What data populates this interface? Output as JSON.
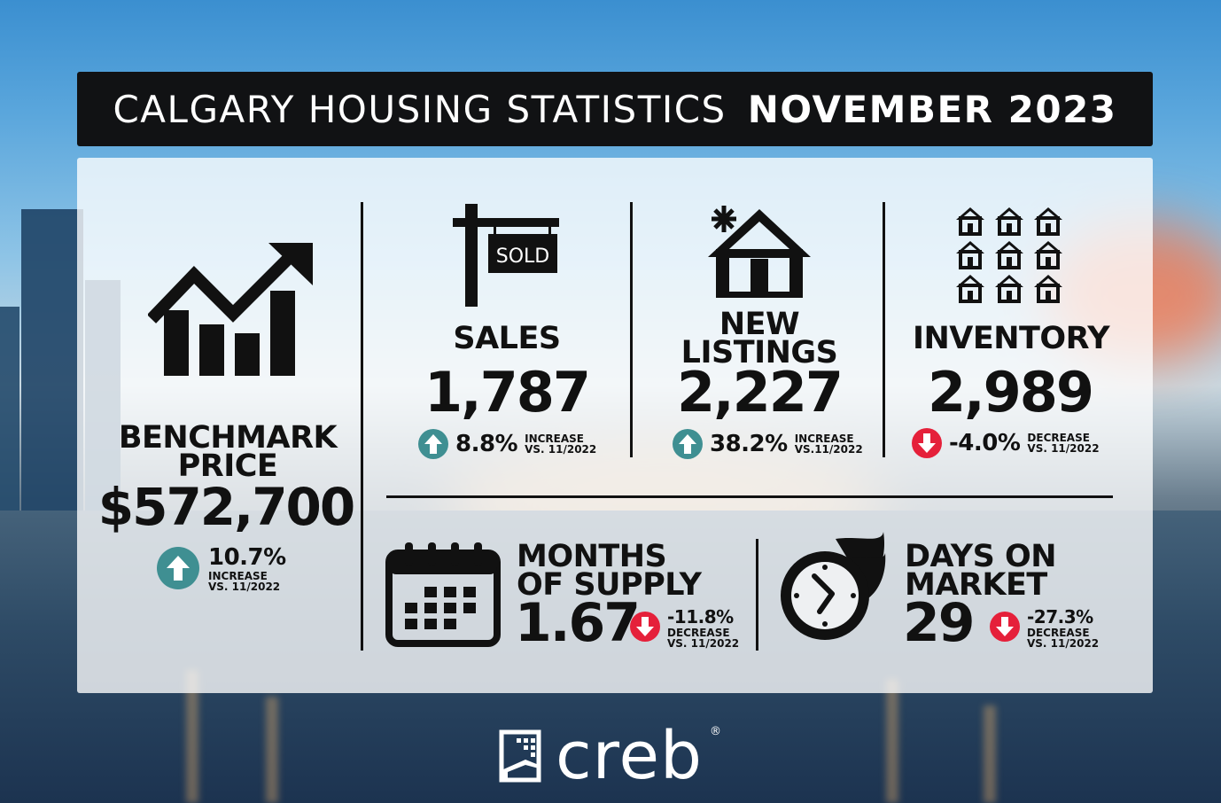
{
  "title": {
    "left": "CALGARY HOUSING STATISTICS",
    "right": "NOVEMBER 2023"
  },
  "colors": {
    "up": "#3f8f92",
    "down": "#e5203a",
    "banner": "#111214"
  },
  "benchmark": {
    "label1": "BENCHMARK",
    "label2": "PRICE",
    "value": "$572,700",
    "change": "10.7%",
    "direction": "up",
    "note1": "INCREASE",
    "note2": "VS. 11/2022",
    "icon": "trending-up-chart-icon"
  },
  "sales": {
    "sign": "SOLD",
    "label": "SALES",
    "value": "1,787",
    "change": "8.8%",
    "direction": "up",
    "note1": "INCREASE",
    "note2": "VS. 11/2022",
    "icon": "sold-sign-icon"
  },
  "new_listings": {
    "label1": "NEW",
    "label2": "LISTINGS",
    "value": "2,227",
    "change": "38.2%",
    "direction": "up",
    "note1": "INCREASE",
    "note2": "VS.11/2022",
    "icon": "new-house-icon"
  },
  "inventory": {
    "label": "INVENTORY",
    "value": "2,989",
    "change": "-4.0%",
    "direction": "down",
    "note1": "DECREASE",
    "note2": "VS. 11/2022",
    "icon": "houses-grid-icon"
  },
  "months_supply": {
    "label1": "MONTHS",
    "label2": "OF SUPPLY",
    "value": "1.67",
    "change": "-11.8%",
    "direction": "down",
    "note1": "DECREASE",
    "note2": "VS. 11/2022",
    "icon": "calendar-icon"
  },
  "days_on_market": {
    "label1": "DAYS ON",
    "label2": "MARKET",
    "value": "29",
    "change": "-27.3%",
    "direction": "down",
    "note1": "DECREASE",
    "note2": "VS. 11/2022",
    "icon": "fast-clock-icon"
  },
  "brand": {
    "name": "creb",
    "reg": "®"
  }
}
